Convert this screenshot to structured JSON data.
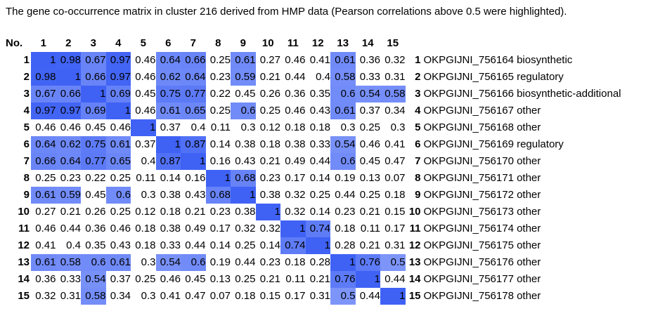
{
  "caption": "The gene co-occurrence matrix in cluster 216 derived from HMP data (Pearson correlations above 0.5 were highlighted).",
  "header": [
    "No.",
    "1",
    "2",
    "3",
    "4",
    "5",
    "6",
    "7",
    "8",
    "9",
    "10",
    "11",
    "12",
    "13",
    "14",
    "15"
  ],
  "highlight": {
    "threshold": 0.5,
    "color": "#3f62f5"
  },
  "rows": [
    {
      "no": "1",
      "values": [
        1,
        0.98,
        0.67,
        0.97,
        0.46,
        0.64,
        0.66,
        0.25,
        0.61,
        0.27,
        0.46,
        0.41,
        0.61,
        0.36,
        0.32
      ],
      "label_no": "1",
      "label": "OKPGIJNI_756164 biosynthetic"
    },
    {
      "no": "2",
      "values": [
        0.98,
        1,
        0.66,
        0.97,
        0.46,
        0.62,
        0.64,
        0.23,
        0.59,
        0.21,
        0.44,
        0.4,
        0.58,
        0.33,
        0.31
      ],
      "label_no": "2",
      "label": "OKPGIJNI_756165 regulatory"
    },
    {
      "no": "3",
      "values": [
        0.67,
        0.66,
        1,
        0.69,
        0.45,
        0.75,
        0.77,
        0.22,
        0.45,
        0.26,
        0.36,
        0.35,
        0.6,
        0.54,
        0.58
      ],
      "label_no": "3",
      "label": "OKPGIJNI_756166 biosynthetic-additional"
    },
    {
      "no": "4",
      "values": [
        0.97,
        0.97,
        0.69,
        1,
        0.46,
        0.61,
        0.65,
        0.25,
        0.6,
        0.25,
        0.46,
        0.43,
        0.61,
        0.37,
        0.34
      ],
      "label_no": "4",
      "label": "OKPGIJNI_756167 other"
    },
    {
      "no": "5",
      "values": [
        0.46,
        0.46,
        0.45,
        0.46,
        1,
        0.37,
        0.4,
        0.11,
        0.3,
        0.12,
        0.18,
        0.18,
        0.3,
        0.25,
        0.3
      ],
      "label_no": "5",
      "label": "OKPGIJNI_756168 other"
    },
    {
      "no": "6",
      "values": [
        0.64,
        0.62,
        0.75,
        0.61,
        0.37,
        1,
        0.87,
        0.14,
        0.38,
        0.18,
        0.38,
        0.33,
        0.54,
        0.46,
        0.41
      ],
      "label_no": "6",
      "label": "OKPGIJNI_756169 regulatory"
    },
    {
      "no": "7",
      "values": [
        0.66,
        0.64,
        0.77,
        0.65,
        0.4,
        0.87,
        1,
        0.16,
        0.43,
        0.21,
        0.49,
        0.44,
        0.6,
        0.45,
        0.47
      ],
      "label_no": "7",
      "label": "OKPGIJNI_756170 other"
    },
    {
      "no": "8",
      "values": [
        0.25,
        0.23,
        0.22,
        0.25,
        0.11,
        0.14,
        0.16,
        1,
        0.68,
        0.23,
        0.17,
        0.14,
        0.19,
        0.13,
        0.07
      ],
      "label_no": "8",
      "label": "OKPGIJNI_756171 other"
    },
    {
      "no": "9",
      "values": [
        0.61,
        0.59,
        0.45,
        0.6,
        0.3,
        0.38,
        0.43,
        0.68,
        1,
        0.38,
        0.32,
        0.25,
        0.44,
        0.25,
        0.18
      ],
      "label_no": "9",
      "label": "OKPGIJNI_756172 other"
    },
    {
      "no": "10",
      "values": [
        0.27,
        0.21,
        0.26,
        0.25,
        0.12,
        0.18,
        0.21,
        0.23,
        0.38,
        1,
        0.32,
        0.14,
        0.23,
        0.21,
        0.15
      ],
      "label_no": "10",
      "label": "OKPGIJNI_756173 other"
    },
    {
      "no": "11",
      "values": [
        0.46,
        0.44,
        0.36,
        0.46,
        0.18,
        0.38,
        0.49,
        0.17,
        0.32,
        0.32,
        1,
        0.74,
        0.18,
        0.11,
        0.17
      ],
      "label_no": "11",
      "label": "OKPGIJNI_756174 other"
    },
    {
      "no": "12",
      "values": [
        0.41,
        0.4,
        0.35,
        0.43,
        0.18,
        0.33,
        0.44,
        0.14,
        0.25,
        0.14,
        0.74,
        1,
        0.28,
        0.21,
        0.31
      ],
      "label_no": "12",
      "label": "OKPGIJNI_756175 other"
    },
    {
      "no": "13",
      "values": [
        0.61,
        0.58,
        0.6,
        0.61,
        0.3,
        0.54,
        0.6,
        0.19,
        0.44,
        0.23,
        0.18,
        0.28,
        1,
        0.76,
        0.5
      ],
      "label_no": "13",
      "label": "OKPGIJNI_756176 other"
    },
    {
      "no": "14",
      "values": [
        0.36,
        0.33,
        0.54,
        0.37,
        0.25,
        0.46,
        0.45,
        0.13,
        0.25,
        0.21,
        0.11,
        0.21,
        0.76,
        1,
        0.44
      ],
      "label_no": "14",
      "label": "OKPGIJNI_756177 other"
    },
    {
      "no": "15",
      "values": [
        0.32,
        0.31,
        0.58,
        0.34,
        0.3,
        0.41,
        0.47,
        0.07,
        0.18,
        0.15,
        0.17,
        0.31,
        0.5,
        0.44,
        1
      ],
      "label_no": "15",
      "label": "OKPGIJNI_756178 other"
    }
  ]
}
